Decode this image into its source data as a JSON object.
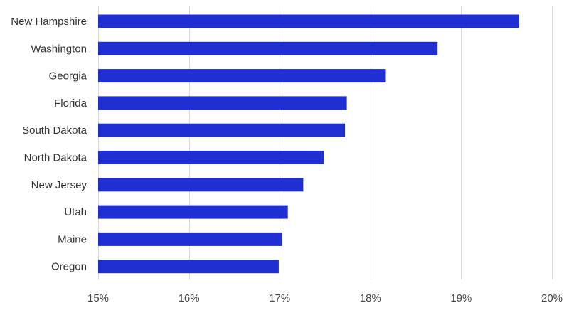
{
  "chart_data": {
    "type": "bar",
    "orientation": "horizontal",
    "categories": [
      "New Hampshire",
      "Washington",
      "Georgia",
      "Florida",
      "South Dakota",
      "North Dakota",
      "New Jersey",
      "Utah",
      "Maine",
      "Oregon"
    ],
    "values": [
      19.64,
      18.74,
      18.17,
      17.74,
      17.72,
      17.49,
      17.26,
      17.09,
      17.03,
      16.99
    ],
    "xlim": [
      15,
      20
    ],
    "xticks": [
      15,
      16,
      17,
      18,
      19,
      20
    ],
    "xtick_labels": [
      "15%",
      "16%",
      "17%",
      "18%",
      "19%",
      "20%"
    ],
    "grid": "vertical",
    "legend": "none",
    "bar_color": "#1f2fd1",
    "title": "",
    "xlabel": "",
    "ylabel": ""
  }
}
